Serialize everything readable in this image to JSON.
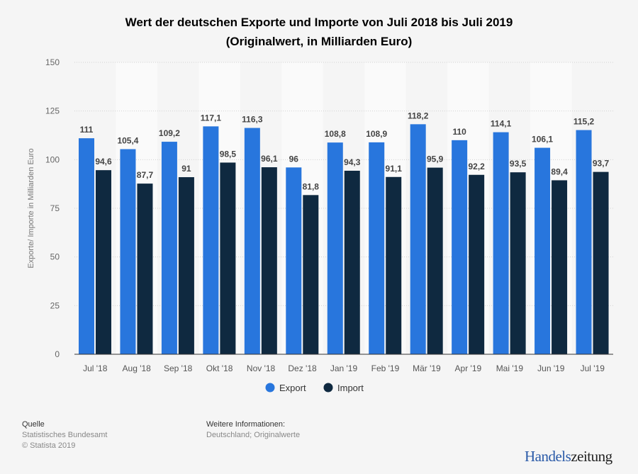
{
  "chart_data": {
    "type": "bar",
    "title": "Wert der deutschen Exporte und Importe von Juli 2018 bis Juli 2019",
    "subtitle": "(Originalwert, in Milliarden Euro)",
    "ylabel": "Exporte/ Importe in Milliarden Euro",
    "xlabel": "",
    "ylim": [
      0,
      150
    ],
    "yticks": [
      "0",
      "25",
      "50",
      "75",
      "100",
      "125",
      "150"
    ],
    "grid": true,
    "legend": "bottom",
    "categories": [
      "Jul '18",
      "Aug '18",
      "Sep '18",
      "Okt '18",
      "Nov '18",
      "Dez '18",
      "Jan '19",
      "Feb '19",
      "Mär '19",
      "Apr '19",
      "Mai '19",
      "Jun '19",
      "Jul '19"
    ],
    "series": [
      {
        "name": "Export",
        "color": "#2876dd",
        "values": [
          111,
          105.4,
          109.2,
          117.1,
          116.3,
          96,
          108.8,
          108.9,
          118.2,
          110,
          114.1,
          106.1,
          115.2
        ],
        "labels": [
          "111",
          "105,4",
          "109,2",
          "117,1",
          "116,3",
          "96",
          "108,8",
          "108,9",
          "118,2",
          "110",
          "114,1",
          "106,1",
          "115,2"
        ]
      },
      {
        "name": "Import",
        "color": "#0f2940",
        "values": [
          94.6,
          87.7,
          91,
          98.5,
          96.1,
          81.8,
          94.3,
          91.1,
          95.9,
          92.2,
          93.5,
          89.4,
          93.7
        ],
        "labels": [
          "94,6",
          "87,7",
          "91",
          "98,5",
          "96,1",
          "81,8",
          "94,3",
          "91,1",
          "95,9",
          "92,2",
          "93,5",
          "89,4",
          "93,7"
        ]
      }
    ]
  },
  "footer": {
    "source_heading": "Quelle",
    "source_lines": [
      "Statistisches Bundesamt",
      "© Statista 2019"
    ],
    "info_heading": "Weitere Informationen:",
    "info_text": "Deutschland; Originalwerte",
    "logo_part1": "Handels",
    "logo_part2": "zeitung",
    "logo_colors": [
      "#2a5aa8",
      "#222222"
    ]
  }
}
